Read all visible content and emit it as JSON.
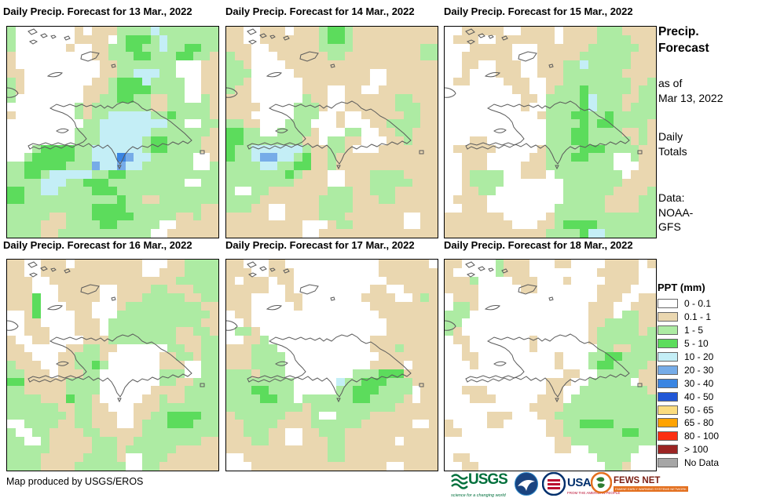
{
  "panels": [
    {
      "title": "Daily Precip. Forecast for 13 Mar., 2022",
      "grid": [
        "gWWWWWWWTWTTTggggcgggggg g",
        "gWWWWWWWTTTTWgGGGgcgggggg",
        "gWWWWWWTWWTTggGGggcggGGgg",
        "TWWWWWWWWWTTgggGGgggGGggT",
        "TWWWWWWWWWWTTgggggggWWWTT",
        "TTWWWWWWWWWTTggcccggWWWTT",
        "gTWWWWWWWWTTgGGGcggggWWTT",
        "gTWWWWWWWTTTgGGGGggggWWTT",
        "gWWWWWWWWTTggGGggTTggWWgT",
        "WWWWWWWWgTgggggggTTgggggT",
        "TWWWWWWWgTggcccccggGggggT",
        "WWWWWWWWWggccccccccggWWgg",
        "WWWWWWWWgggccccccgggggggT",
        "WWWWWWWWgggcccccgGGggggTT",
        "WWWgGGGGggccccccgGGggggTT",
        "WWgGGGGGggcccBbccgggggWWT",
        "ggGGGGGgggbccbccggggggWWg",
        "ggGGgcccccggGGggggggggggg",
        "ggggcccggGGGgggggggggWWgg",
        "GGggccggggGGGgggggggggggg",
        "GGgggggggggggGggTTggggggg",
        "ggggggggggGGGGgggggggggTT",
        "gggggTTgggGGGGGgggggTTgTT",
        "ggggTTTggggGGgggggWWTTTTT",
        "ggggTTgggggggggggWWTTTTTT"
      ]
    },
    {
      "title": "Daily Precip. Forecast for 14 Mar., 2022",
      "grid": [
        "TTWWTTTWTTTgGGgTTTTTTTTTT",
        "TTWWTTTTTTTgGGgTTTTTTTTTT",
        "TTTWWTTTTTTggggTTTTTTTTgg",
        "gTTWWWTTTTTTggTTTTTTTTTgg",
        "ggTWWWWTTTTTTTTTTTTTTTTTT",
        "gggWWWWWTTTTTTTTTWWTTTTTT",
        "ggTWWWWWWTTTTTTTTWWTTTTTT",
        "gTTWWWWWWTTTWWTTWWTTTTTTT",
        "TTTWWWWWWgTTWWTTTTTTggTTT",
        "TTTTWWWWgggTWWTTTTTTgggTT",
        "TTTWWWWWgggWWTWWTTTTTggTT",
        "ggTTWWWgggWWWTWWWTTggggTT",
        "GGggWWggggTWWWggWWTTggTTT",
        "GGgggggggTTWggTTWWWTTgTTT",
        "GggccccccgTTggTWWWTTTTTTT",
        "GggcbbccgGTTgTTTTTTTTTTTT",
        "ggggccggGGTTgTTTTTTTTTTTT",
        "gggggggGgTTTWWTTTggggTTTT",
        "ggggggggTTTTWWTTTgggggTTT",
        "gWWggTTTTTTTgggTTgggTTTTT",
        "ggggTTTTTTTggggTTTggTTTTT",
        "gggTTWWTTTTggggTTTTTTTTTT",
        "TTTTTWWTTTTgggTTTTTTTWWTT",
        "TTTTTTTTTWWWTggTTTTTTWWTT",
        "TTTTTTTTTWWTTTTTTTTTTTTTT"
      ]
    },
    {
      "title": "Daily Precip. Forecast for 15 Mar., 2022",
      "grid": [
        "WWTTTTTWWTTTTWTTTTgggTTTT",
        "WTTTWWTTTTTTTWTTTTggggTTT",
        "WWWTTTTTWWWTTTTTTggggggTT",
        "WWTTTTTTWWWTTTTTggggggTTT",
        "WWTTWWTTTWWTTTggcgggggTTT",
        "WWTWWWTTTWWTTTgggggggTTTT",
        "WTTWWWWTTTWWTTggggggggTTg",
        "WWWWWWWWTTWWTgggGgggggTgg",
        "WWWWWWWWWTTWggggGcgggTTgg",
        "WWWWWWWWWTWWggggGcgggTggg",
        "WWWWWWWWWWWTgggGGggGggggg",
        "WWWWWWWWWWWWggggGgGGggggT",
        "WWWWWWWWWWWWgggGGggggTTgT",
        "WWWTTWWWWWWWgggGGgggggTgT",
        "WTTTTTWWWWWTggggGGGggggTT",
        "WWTTTWWWWWTTgggGGgggWWgTT",
        "WWTTTWWWWTTTggggggggWWWTT",
        "WWTggggWWTTTWggggggggWTTT",
        "WWTggggWWWWWWWgggggggTTTT",
        "WWTTggWWWWWWWWggggggTTTTg",
        "WTTTTWWWWWWWWWgggggTTTTgg",
        "WWTTTWWWWWWWWggggggTTTTgg",
        "TTTTTTTWWWWWTgggggggggggg",
        "TTTTTTTTWWWTTgGGGGggggggg",
        "TTTTTTTTTTTTggggGccgggggg"
      ]
    },
    {
      "title": "Daily Precip. Forecast for 16 Mar., 2022",
      "grid": [
        "TTWWTTTWTTTTTTTTWWWTTgggg",
        "TTWWTTTTTTTTTTTTWWTTTgggg",
        "TTTWWTTTTTTTTTTTTTTTggggg",
        "TTTWWWTTTTTWWTTTTggTTTggg",
        "TTTGWWTTTTTWWTTTgggggTTgg",
        "TTTGWWWTTTWWWTgggggggggTT",
        "WWTGWWWWTTWWWgggggggggggT",
        "WWTTWWWWTTTWgggggggggggTT",
        "WWTTTWWWTTTWggggggggTTggT",
        "TWWTTWWWWTTTggggggggTTTgg",
        "TTWWWWWTTggTTWWWWWWggTTgg",
        "TTTWWWTTgggTWWWWWWTTggTgg",
        "gTTTWWTTggGgWWWWWWTTTWWgg",
        "ggTTTWTTTggWWWWWWWgggWWgg",
        "GGTTTTTggggWWWWWWWggTTggg",
        "ggTTTTTggggWWWWWWTTTTgggg",
        "ggggTTTGggTWWWWWTTgTTgggg",
        "ggggggTTggTTWWWTTTggggggg",
        "gggggggTggTTTWWTTggGGGGgg",
        "WWggggTTggTTTWWTgggGGGggg",
        "gWWggTTTTggTTTTTggggggggg",
        "ggWWgTTTTTgggTTggggggggTT",
        "gggggTTTTTgggTggggggTTTTT",
        "ggggTTTTTggggTWWgggTTTTTT",
        "ggggTTTTggggggWWggTTTTTTT"
      ]
    },
    {
      "title": "Daily Precip. Forecast for 17 Mar., 2022",
      "grid": [
        "TTWWWTTWWWWWWWWWWWTTTTTTW",
        "TTTWWTTTWWWWWWWWWWTTTTTTT",
        "TWTTTWTTWWWWWWWWWWWTTTTTT",
        "TTTTTWWTWWWWWWWWWTTWWTTTT",
        "TTTWWWWTTWWWWWWWTTTTWWTgT",
        "TTTWWWWWTWWWWWWWWTTTTTTTT",
        "WTTWWWWWWWWWWWWWWWTTTTTTT",
        "WWTWWWWWWWWWWWWWWWWTTTTTT",
        "WggTWWWWWWWWWWWWWWWTTTTTT",
        "WWTTgWWWWWWWWWWWWTTTTTTTT",
        "TTTgggWWWWWWWWWWWTTTgTTTT",
        "TTTggggWWWWWWWWWWWTTTTTTT",
        "TTTggggWWWWWWWWWWTTTTWTTT",
        "gggTgggWWWWWWWWgggGGGTTTT",
        "ggggggggWWWWWcggGGGgggTTT",
        "gggGGgggWWWWWggGGGggggWTT",
        "ggggGGggWggggggGGggggTWTT",
        "gggggggggTggggggggggTTTTT",
        "TggggggTTTgWWggggTTTTTTTT",
        "TTggggTTTTggggggTTTTTTWWT",
        "TTgggTTWWTTgggTTTTTTTTTTT",
        "TTTggTTWWTTTggTTTTTTWTTTT",
        "TTTTTTTTTTTTggTTTTTTTTTTT",
        "WWTTTTTTTTTTggTTTTTTTTTTT",
        "WWWTTTTTTTTTTTTTTTTWWTTTT"
      ]
    },
    {
      "title": "Daily Precip. Forecast for 18 Mar., 2022",
      "grid": [
        "TTWWWWgTTTWWWTTWWWWTTTTWT",
        "TWWWWWgTTTWWWWWWWWTTTTTWW",
        "TTTgWWWWTTTWWWTWWWWTTTTWW",
        "TTTTWWWWWTTWWWWWWWTTTTWWW",
        "WTTTWWWWWWWWWWWWWWTTTWWTT",
        "WggTWWWWWWWWWWWWWTTTWWTTT",
        "gggWWWWWWWWWWWWWWTTTWggTT",
        "ggWWWWWWWWWWWWWWWTTggggTT",
        "gTWWWWWWWWWWWWWWWTgggggTg",
        "WTTWWWWWWWTWWWWWWTggggggg",
        "WWTWWWWWWWTWWWWWWWggTTggg",
        "WWTTWWWWWWWWWTWWWggGGgggg",
        "WWWTWWWWWWWWWTWWWgGGggggT",
        "WWWWWWWWWWWWWWTTWWgggggTT",
        "WWWWWWWWWWWWTTTWWgggggWTT",
        "WWTTTWWWWWWWTTWWggggggggT",
        "WWWTTTWWWWWTTTWgggggggggg",
        "WWWWWWWWWWTTTTggggggggggg",
        "WWWWWTTTWWWTTgggggggggggg",
        "TWWWWTTWWWWWTTggGGGGggggg",
        "TTWWWWWWWWWWTTgggggggGGgg",
        "WWWWWWWWWWWWWTTgggggggggg",
        "WWWWWWWWWWWWWTTWWggggggWW",
        "WTTWWWWWWWWWWWWWWWggggWWW",
        "WWTTWWWWWWWWWWWWWWWggTWWW"
      ]
    }
  ],
  "map_colors": {
    "W": "#FFFFFF",
    "T": "#EAD7B0",
    "g": "#ADEBA3",
    "G": "#5CDC5C",
    "c": "#C4EEF6",
    "b": "#76ACE8",
    "B": "#3A85E2"
  },
  "sidebar": {
    "title1": "Precip.",
    "title2": "Forecast",
    "asof1": "as of",
    "asof2": "Mar 13, 2022",
    "totals1": "Daily",
    "totals2": "Totals",
    "data1": "Data:",
    "data2": "NOAA-",
    "data3": "GFS"
  },
  "legend": {
    "title": "PPT (mm)",
    "items": [
      {
        "label": "0 - 0.1",
        "color": "#FFFFFF"
      },
      {
        "label": "0.1 - 1",
        "color": "#EAD7B0"
      },
      {
        "label": "1 - 5",
        "color": "#ADEBA3"
      },
      {
        "label": "5 - 10",
        "color": "#5CDC5C"
      },
      {
        "label": "10 - 20",
        "color": "#C4EEF6"
      },
      {
        "label": "20 - 30",
        "color": "#76ACE8"
      },
      {
        "label": "30 - 40",
        "color": "#3A85E2"
      },
      {
        "label": "40 - 50",
        "color": "#2157D6"
      },
      {
        "label": "50 - 65",
        "color": "#FADC7E"
      },
      {
        "label": "65 - 80",
        "color": "#FFA302"
      },
      {
        "label": "80 - 100",
        "color": "#FC2E11"
      },
      {
        "label": "> 100",
        "color": "#9B2423"
      },
      {
        "label": "No Data",
        "color": "#A6A6A6"
      }
    ]
  },
  "footer": {
    "credit": "Map produced by USGS/EROS"
  },
  "logos": {
    "usgs": {
      "name": "USGS",
      "tagline": "science for a changing world",
      "color": "#00703C"
    },
    "noaa": {
      "name": "NOAA"
    },
    "usaid": {
      "name_part1": "USA",
      "name_part2": "ID",
      "tagline": "FROM THE AMERICAN PEOPLE"
    },
    "fewsnet": {
      "name": "FEWS NET",
      "tagline": "FAMINE EARLY WARNING SYSTEMS NETWORK"
    }
  }
}
